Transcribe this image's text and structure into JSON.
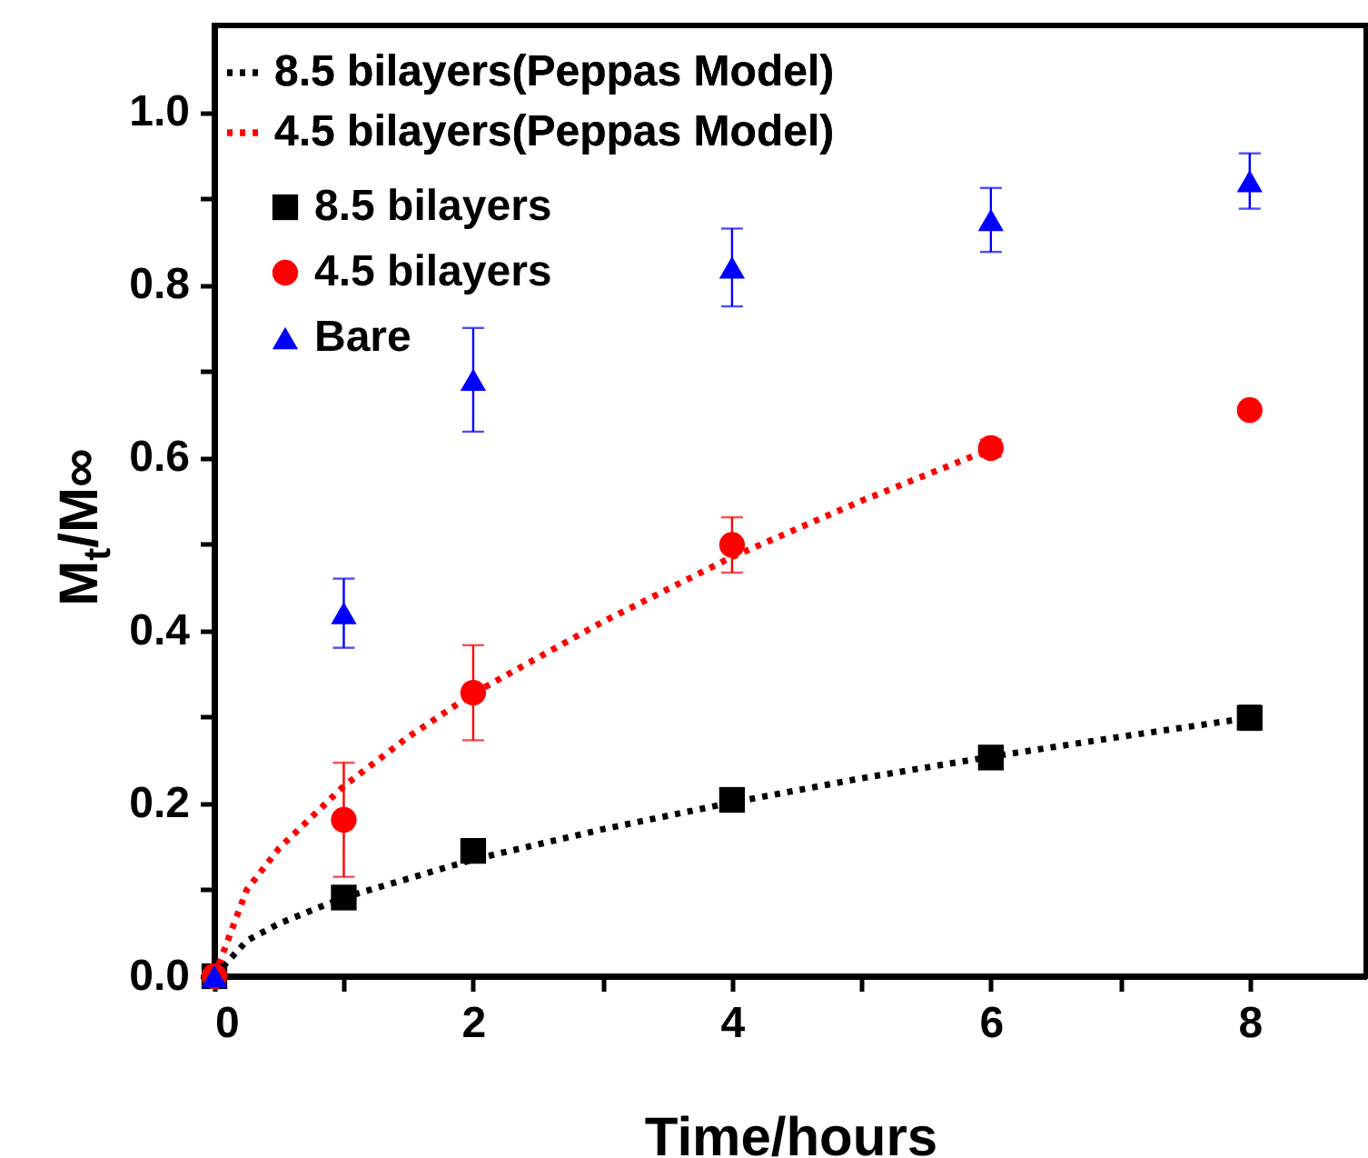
{
  "chart_data": {
    "type": "scatter",
    "xlabel": "Time/hours",
    "ylabel": "M$_{t}$/M∞",
    "xlim": [
      0,
      8.9
    ],
    "ylim": [
      0,
      1.1
    ],
    "xticks": [
      0,
      {
        "value": 1,
        "label": null
      },
      2,
      {
        "value": 3,
        "label": null
      },
      4,
      {
        "value": 5,
        "label": null
      },
      6,
      {
        "value": 7,
        "label": null
      },
      8
    ],
    "yticks": [
      {
        "value": 0,
        "label": "0.0"
      },
      {
        "value": 0.1,
        "label": null
      },
      0.2,
      {
        "value": 0.3,
        "label": null
      },
      0.4,
      {
        "value": 0.5,
        "label": null
      },
      0.6,
      {
        "value": 0.7,
        "label": null
      },
      0.8,
      {
        "value": 0.9,
        "label": null
      },
      {
        "value": 1,
        "label": "1.0"
      }
    ],
    "legend": "top left",
    "grid": false,
    "series": [
      {
        "name": "8.5 bilayers(Peppas Model)",
        "type": "line",
        "color": "#000000",
        "line_style": "dotted",
        "marker": "none",
        "x": [
          0,
          0.25,
          0.5,
          1,
          2,
          3,
          4,
          5,
          6,
          7,
          8
        ],
        "values": [
          0,
          0.041,
          0.061,
          0.091,
          0.135,
          0.17,
          0.201,
          0.229,
          0.254,
          0.277,
          0.299
        ]
      },
      {
        "name": "4.5 bilayers(Peppas Model)",
        "type": "line",
        "color": "#ff0000",
        "line_style": "dotted",
        "marker": "none",
        "x": [
          0,
          0.25,
          0.5,
          1,
          1.5,
          2,
          3,
          4,
          5,
          6
        ],
        "values": [
          0,
          0.1,
          0.148,
          0.22,
          0.277,
          0.327,
          0.41,
          0.485,
          0.55,
          0.61
        ]
      },
      {
        "name": "8.5 bilayers",
        "color": "#000000",
        "marker": "square",
        "x": [
          0,
          1,
          2,
          4,
          6,
          8
        ],
        "values": [
          0,
          0.091,
          0.145,
          0.204,
          0.253,
          0.299
        ],
        "errors": [
          null,
          null,
          null,
          0.01,
          0.012,
          0.014
        ]
      },
      {
        "name": "4.5 bilayers",
        "color": "#ff0000",
        "marker": "circle",
        "x": [
          0,
          1,
          2,
          4,
          6,
          8
        ],
        "values": [
          0,
          0.181,
          0.328,
          0.499,
          0.611,
          0.655
        ],
        "errors": [
          null,
          0.066,
          0.055,
          0.032,
          0.01,
          null
        ]
      },
      {
        "name": "Bare",
        "color": "#0000ff",
        "marker": "triangle",
        "x": [
          0,
          1,
          2,
          4,
          6,
          8
        ],
        "values": [
          0,
          0.42,
          0.69,
          0.82,
          0.875,
          0.92
        ],
        "errors": [
          null,
          0.04,
          0.06,
          0.045,
          0.037,
          0.032
        ]
      }
    ]
  }
}
